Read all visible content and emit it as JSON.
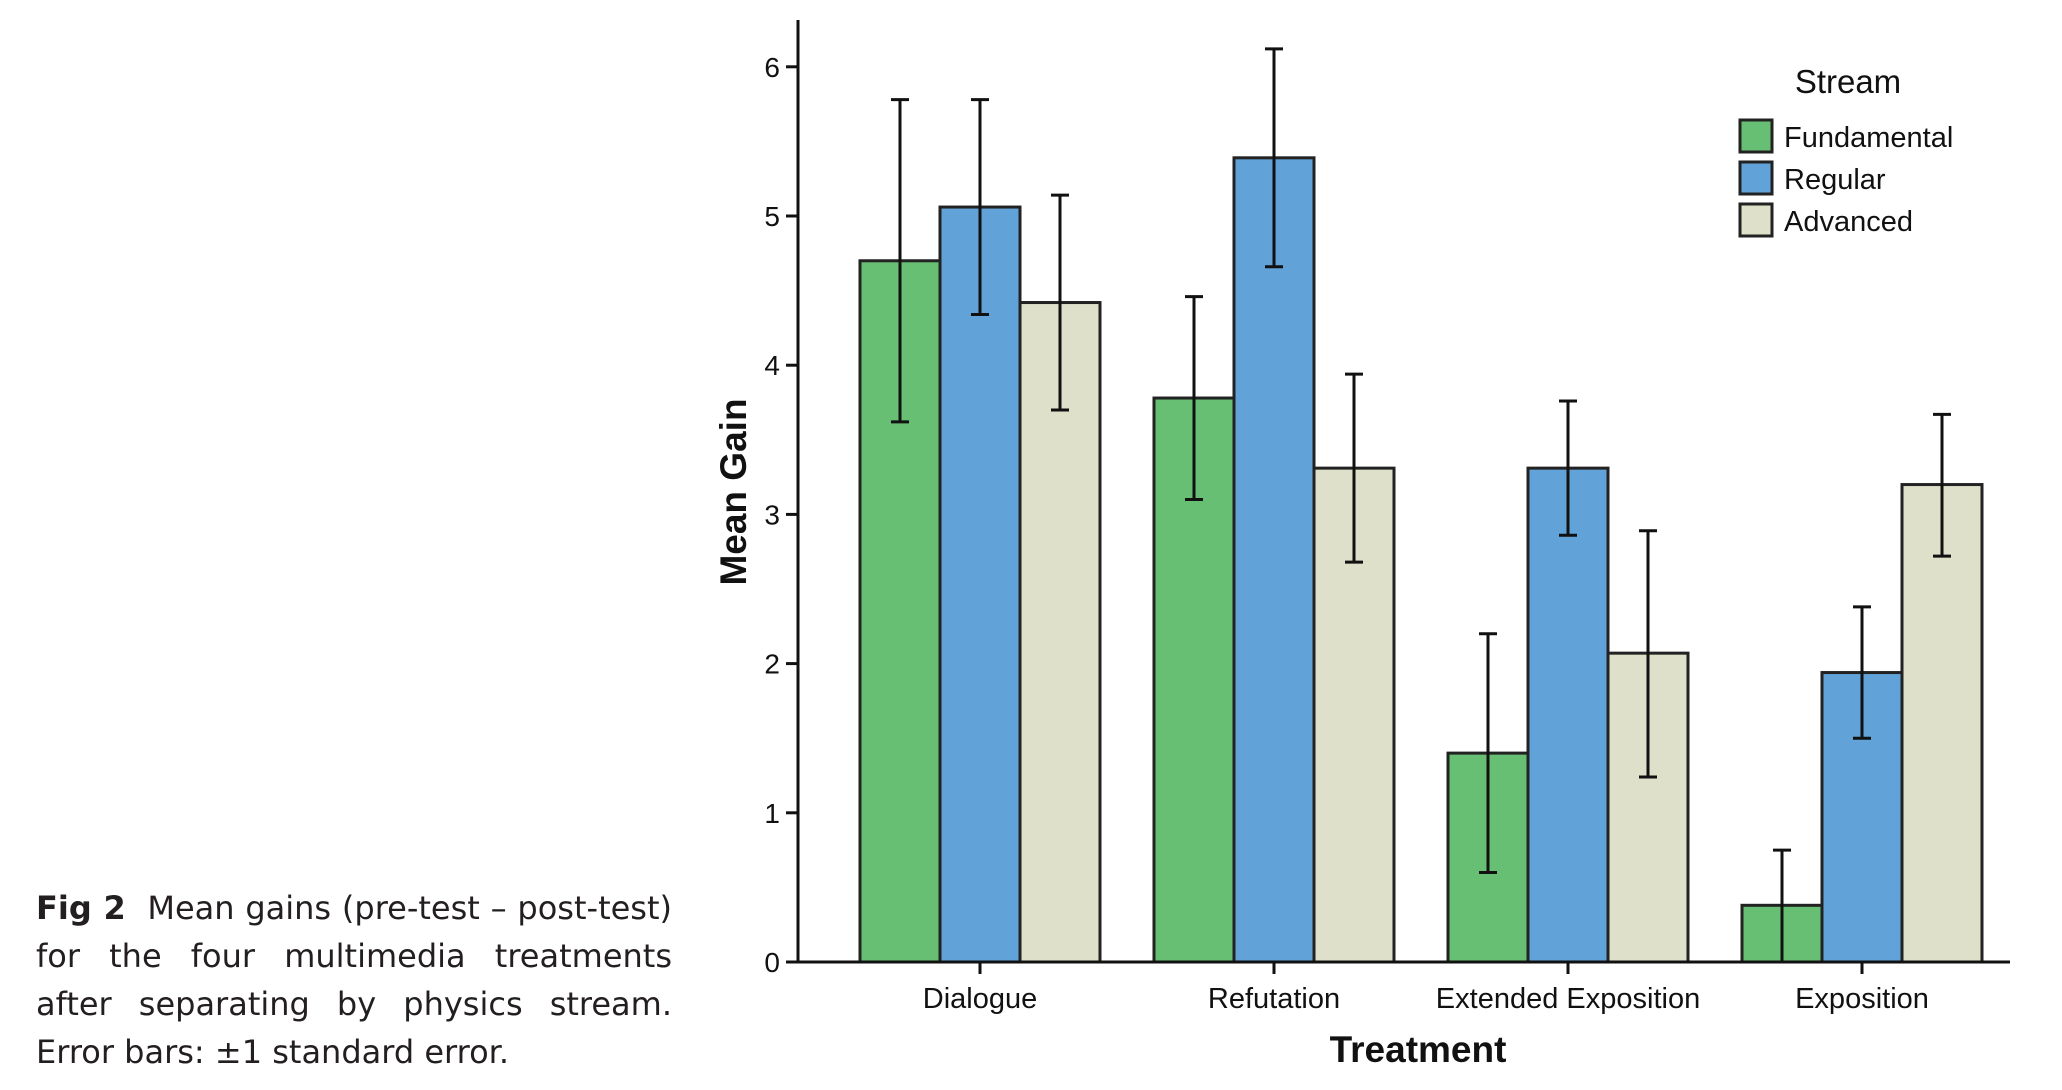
{
  "caption": {
    "label": "Fig 2",
    "text": "Mean gains (pre-test – post-test) for the four multimedia treatments after separating by physics stream. Error bars: ±1 standard error."
  },
  "chart_data": {
    "type": "bar",
    "title": "",
    "xlabel": "Treatment",
    "ylabel": "Mean Gain",
    "ylim": [
      0,
      6.3
    ],
    "yticks": [
      0,
      1,
      2,
      3,
      4,
      5,
      6
    ],
    "grid": false,
    "legend": {
      "title": "Stream",
      "placement": "top-right"
    },
    "categories": [
      "Dialogue",
      "Refutation",
      "Extended Exposition",
      "Exposition"
    ],
    "series": [
      {
        "name": "Fundamental",
        "color": "#66bf73",
        "values": [
          4.7,
          3.78,
          1.4,
          0.38
        ],
        "err_low": [
          3.62,
          3.1,
          0.6,
          0.0
        ],
        "err_high": [
          5.78,
          4.46,
          2.2,
          0.75
        ]
      },
      {
        "name": "Regular",
        "color": "#61a3d8",
        "values": [
          5.06,
          5.39,
          3.31,
          1.94
        ],
        "err_low": [
          4.34,
          4.66,
          2.86,
          1.5
        ],
        "err_high": [
          5.78,
          6.12,
          3.76,
          2.38
        ]
      },
      {
        "name": "Advanced",
        "color": "#dfe0c9",
        "values": [
          4.42,
          3.31,
          2.07,
          3.2
        ],
        "err_low": [
          3.7,
          2.68,
          1.24,
          2.72
        ],
        "err_high": [
          5.14,
          3.94,
          2.89,
          3.67
        ]
      }
    ]
  }
}
